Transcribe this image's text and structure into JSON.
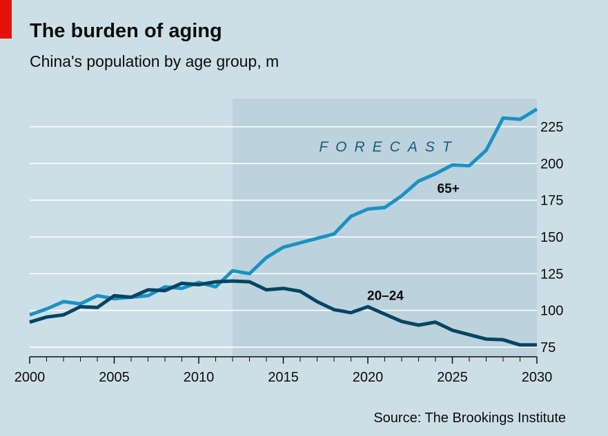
{
  "header": {
    "title": "The burden of aging",
    "subtitle": "China's population by age group, m"
  },
  "footer": {
    "source": "Source: The Brookings Institute"
  },
  "colors": {
    "accent": "#e3120b",
    "background": "#cddfe6",
    "forecast_band": "#bcd2dd",
    "series_65_plus": "#1b91c4",
    "series_20_24": "#044563",
    "gridline": "#ffffff"
  },
  "chart_data": {
    "type": "line",
    "xlim": [
      2000,
      2030
    ],
    "ylim": [
      68,
      245
    ],
    "y_ticks": [
      75,
      100,
      125,
      150,
      175,
      200,
      225
    ],
    "x_major_ticks": [
      2000,
      2005,
      2010,
      2015,
      2020,
      2025,
      2030
    ],
    "y_axis_side": "right",
    "grid": true,
    "forecast_region": {
      "start": 2012,
      "end": 2030,
      "label": "FORECAST"
    },
    "series": [
      {
        "name": "65+",
        "color": "#1b91c4",
        "x": [
          2000,
          2001,
          2002,
          2003,
          2004,
          2005,
          2006,
          2007,
          2008,
          2009,
          2010,
          2011,
          2012,
          2013,
          2014,
          2015,
          2016,
          2017,
          2018,
          2019,
          2020,
          2021,
          2022,
          2023,
          2024,
          2025,
          2026,
          2027,
          2028,
          2029,
          2030
        ],
        "values": [
          97,
          101,
          106,
          104.5,
          110,
          108,
          109,
          110,
          116,
          115,
          119,
          116,
          127,
          125,
          136,
          143,
          146,
          149,
          152,
          164,
          169,
          170,
          178,
          188,
          193,
          199,
          198.5,
          209,
          231,
          230,
          237
        ]
      },
      {
        "name": "20–24",
        "color": "#044563",
        "x": [
          2000,
          2001,
          2002,
          2003,
          2004,
          2005,
          2006,
          2007,
          2008,
          2009,
          2010,
          2011,
          2012,
          2013,
          2014,
          2015,
          2016,
          2017,
          2018,
          2019,
          2020,
          2021,
          2022,
          2023,
          2024,
          2025,
          2026,
          2027,
          2028,
          2029,
          2030
        ],
        "values": [
          92,
          95.5,
          97,
          102.5,
          102,
          110,
          109,
          114,
          113.5,
          118.5,
          117.5,
          119.5,
          120,
          119.5,
          114,
          115,
          113,
          106,
          100.5,
          98.5,
          102.5,
          97.5,
          92.5,
          90,
          92,
          86.5,
          83.5,
          80.5,
          80,
          76.5,
          76.5
        ]
      }
    ]
  }
}
